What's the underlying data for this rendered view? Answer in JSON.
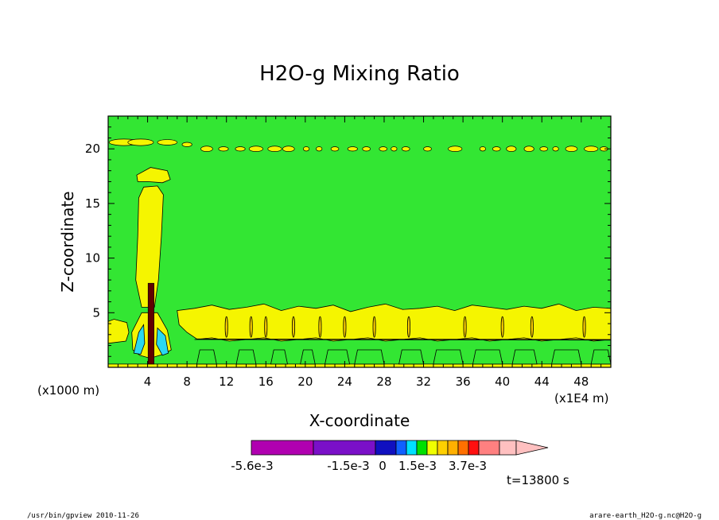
{
  "chart_data": {
    "type": "contour",
    "title": "H2O-g Mixing Ratio",
    "xlabel": "X-coordinate",
    "ylabel": "Z-coordinate",
    "x_unit": "(x1000 m)",
    "x_unit_right": "(x1E4 m)",
    "x_ticks": [
      4,
      8,
      12,
      16,
      20,
      24,
      28,
      32,
      36,
      40,
      44,
      48
    ],
    "y_ticks": [
      5,
      10,
      15,
      20
    ],
    "xlim": [
      0,
      51
    ],
    "ylim": [
      0,
      23
    ],
    "colorbar": {
      "colors": [
        "#b000b0",
        "#b000b0",
        "#7a10c8",
        "#1010c0",
        "#1060ff",
        "#00e0ff",
        "#00e000",
        "#f0ff00",
        "#ffd000",
        "#ffb000",
        "#ff7000",
        "#ff1010",
        "#ff8080",
        "#ffc0c0"
      ],
      "labels": [
        "-5.6e-3",
        "-1.5e-3",
        "0",
        "1.5e-3",
        "3.7e-3"
      ]
    },
    "time_label": "t=13800 s"
  },
  "footer": {
    "left": "/usr/bin/gpview   2010-11-26",
    "right": "arare-earth_H2O-g.nc@H2O-g"
  }
}
